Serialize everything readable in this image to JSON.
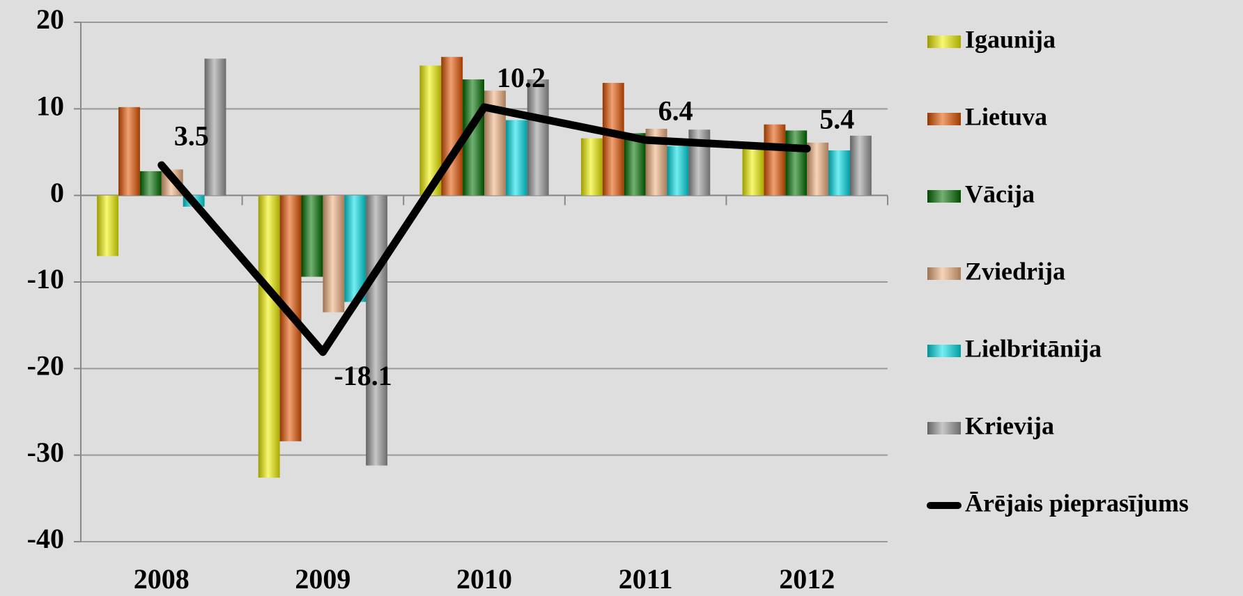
{
  "chart_data": {
    "type": "bar",
    "categories": [
      "2008",
      "2009",
      "2010",
      "2011",
      "2012"
    ],
    "series": [
      {
        "name": "Igaunija",
        "color": "#f2f200",
        "values": [
          -7.0,
          -32.6,
          15.0,
          6.6,
          5.5
        ]
      },
      {
        "name": "Lietuva",
        "color": "#e35400",
        "values": [
          10.2,
          -28.4,
          16.0,
          13.0,
          8.2
        ]
      },
      {
        "name": "Vācija",
        "color": "#007000",
        "values": [
          2.8,
          -9.4,
          13.4,
          7.2,
          7.5
        ]
      },
      {
        "name": "Zviedrija",
        "color": "#f0b080",
        "values": [
          3.0,
          -13.5,
          12.1,
          7.7,
          6.1
        ]
      },
      {
        "name": "Lielbritānija",
        "color": "#00e0e8",
        "values": [
          -1.3,
          -12.3,
          8.7,
          5.7,
          5.2
        ]
      },
      {
        "name": "Krievija",
        "color": "#9a9a9a",
        "values": [
          15.8,
          -31.2,
          13.4,
          7.6,
          6.9
        ]
      }
    ],
    "line": {
      "name": "Ārējais pieprasījums",
      "color": "#000000",
      "values": [
        3.5,
        -18.1,
        10.2,
        6.4,
        5.4
      ]
    },
    "ylim": [
      -40,
      20
    ],
    "yticks": [
      -40,
      -30,
      -20,
      -10,
      0,
      10,
      20
    ],
    "grid": true,
    "legend": "right"
  }
}
